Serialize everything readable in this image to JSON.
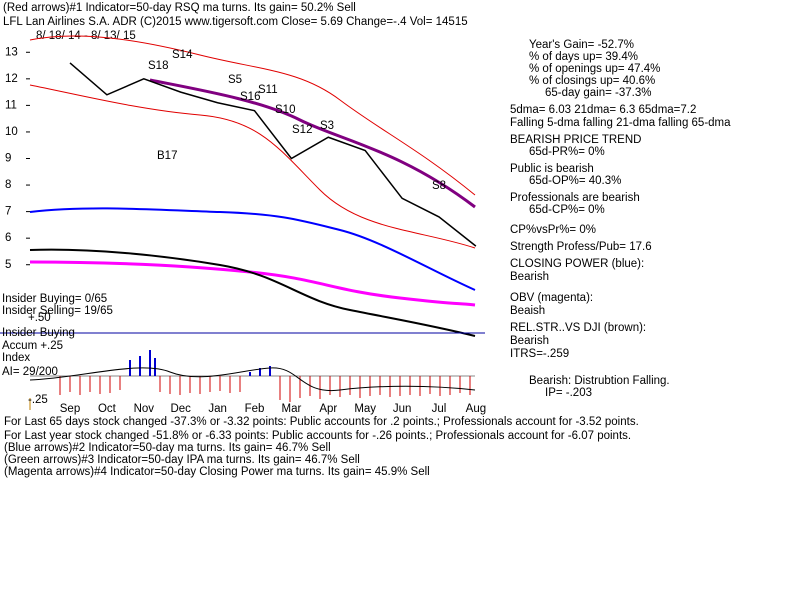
{
  "header": {
    "line1": "(Red arrows)#1 Indicator=50-day RSQ ma turns. Its gain= 50.2% Sell",
    "line2": "LFL   Lan Airlines S.A. ADR  (C)2015 www.tigersoft.com     Close=   5.69  Change=-.4  Vol= 14515"
  },
  "chart_data": {
    "type": "line",
    "subtitle": "8/ 18/ 14 - 8/ 13/ 15",
    "categories": [
      "Sep",
      "Oct",
      "Nov",
      "Dec",
      "Jan",
      "Feb",
      "Mar",
      "Apr",
      "May",
      "Jun",
      "Jul",
      "Aug"
    ],
    "series": [
      {
        "color": "#000000",
        "values": [
          12.6,
          11.4,
          12.0,
          11.5,
          11.1,
          10.8,
          9.0,
          9.8,
          9.3,
          7.5,
          6.8,
          5.7
        ]
      }
    ],
    "ylim": [
      4.5,
      13.5
    ],
    "yticks": [
      5,
      6,
      7,
      8,
      9,
      10,
      11,
      12,
      13
    ]
  },
  "annotations": [
    "S14",
    "S18",
    "S5",
    "S11",
    "S16",
    "S10",
    "S12",
    "S3",
    "B17",
    "S8"
  ],
  "left_labels": [
    "Insider Buying= 0/65",
    "Insider Selling= 19/65",
    "+.50",
    "Insider Buying",
    "Accum +.25",
    "Index",
    "AI= 29/200",
    "-.25"
  ],
  "right_panel": [
    "Year's Gain= -52.7%",
    "% of days up= 39.4%",
    "% of openings up= 47.4%",
    "% of closings up= 40.6%",
    "65-day gain= -37.3%",
    "5dma= 6.03 21dma= 6.3 65dma=7.2",
    "Falling 5-dma falling 21-dma falling 65-dma",
    "BEARISH PRICE TREND",
    "65d-PR%= 0%",
    "Public is bearish",
    "65d-OP%= 40.3%",
    "Professionals are bearish",
    "65d-CP%= 0%",
    "CP%vsPr%=  0%",
    "Strength Profess/Pub= 17.6",
    "CLOSING POWER (blue):",
    "Bearish",
    "OBV (magenta):",
    "Beaish",
    "REL.STR..VS DJI (brown):",
    "Bearish",
    "ITRS=-.259",
    "Bearish: Distrubtion Falling.",
    "IP= -.203"
  ],
  "footer": [
    "For Last 65 days stock changed -37.3% or -3.32 points:  Public accounts for  .2 points.;  Professionals account for -3.52 points.",
    "For Last year stock changed -51.8% or -6.33 points:  Public accounts for -.26 points.;  Professionals account for -6.07 points.",
    "(Blue arrows)#2 Indicator=50-day ma turns. Its gain= 46.7% Sell",
    "(Green arrows)#3 Indicator=50-day IPA ma turns. Its gain= 46.7% Sell",
    "(Magenta arrows)#4 Indicator=50-day Closing Power ma turns. Its gain= 45.9% Sell"
  ]
}
